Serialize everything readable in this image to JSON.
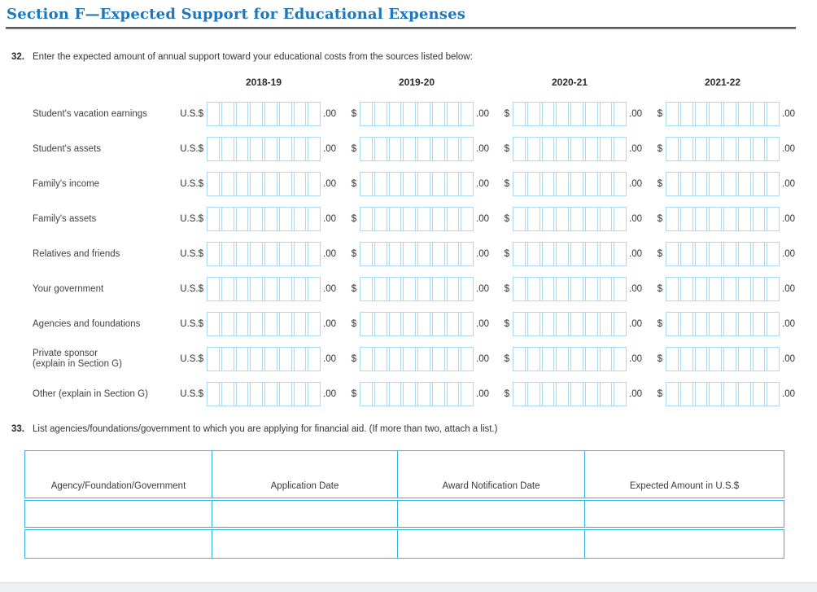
{
  "theme": {
    "title_blue": "#1f76b8",
    "rule_gray": "#58595b",
    "field_border_blue": "#a9d9f3",
    "table_border_cyan": "#35b0e5"
  },
  "header": {
    "section_title": "Section F—Expected Support for Educational Expenses"
  },
  "q32": {
    "number": "32.",
    "prompt": "Enter the expected amount of annual support toward your educational costs from the sources listed below:",
    "years": [
      "2018-19",
      "2019-20",
      "2020-21",
      "2021-22"
    ],
    "currency_prefix_first": "U.S.$",
    "currency_prefix": "$",
    "cents_suffix": ".00",
    "cells_per_field": 8,
    "rows": [
      {
        "label": "Student's vacation earnings"
      },
      {
        "label": "Student's assets"
      },
      {
        "label": "Family's income"
      },
      {
        "label": "Family's assets"
      },
      {
        "label": "Relatives and friends"
      },
      {
        "label": "Your government"
      },
      {
        "label": "Agencies and foundations"
      },
      {
        "label": "Private sponsor",
        "label2": "(explain in Section G)"
      },
      {
        "label": "Other (explain in Section G)"
      }
    ]
  },
  "q33": {
    "number": "33.",
    "prompt": "List agencies/foundations/government to which you are applying for financial aid. (If more than two, attach a list.)",
    "columns": [
      "Agency/Foundation/Government",
      "Application Date",
      "Award Notification Date",
      "Expected Amount in U.S.$"
    ],
    "empty_rows": 2
  }
}
